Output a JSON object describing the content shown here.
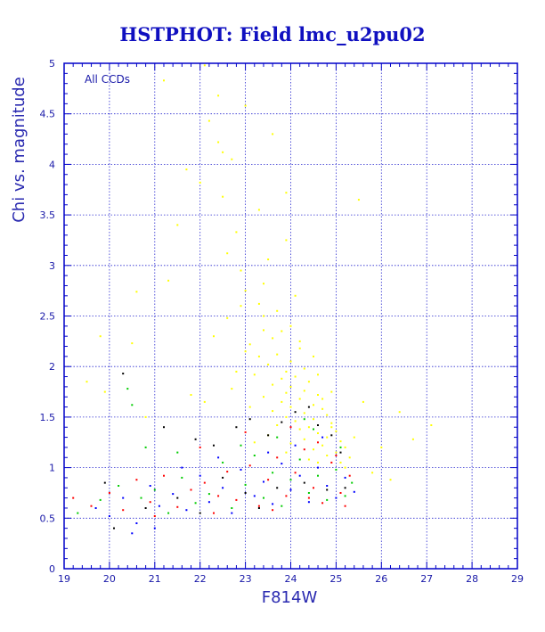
{
  "chart_data": {
    "type": "scatter",
    "title": "HSTPHOT: Field lmc_u2pu02",
    "xlabel": "F814W",
    "ylabel": "Chi vs. magnitude",
    "annotation": "All CCDs",
    "xlim": [
      19,
      29
    ],
    "ylim": [
      0,
      5
    ],
    "xticks": [
      "19",
      "20",
      "21",
      "22",
      "23",
      "24",
      "25",
      "26",
      "27",
      "28",
      "29"
    ],
    "yticks": [
      "0",
      "0.5",
      "1",
      "1.5",
      "2",
      "2.5",
      "3",
      "3.5",
      "4",
      "4.5",
      "5"
    ],
    "grid": true,
    "colors": {
      "frame": "#0000c8",
      "grid": "#2b2bd0",
      "text": "#1818a8"
    },
    "series": [
      {
        "color": "#ffff00",
        "points": [
          [
            22.1,
            4.98
          ],
          [
            21.2,
            4.83
          ],
          [
            22.4,
            4.68
          ],
          [
            23.0,
            4.58
          ],
          [
            22.2,
            4.43
          ],
          [
            23.6,
            4.3
          ],
          [
            22.4,
            4.22
          ],
          [
            22.5,
            4.12
          ],
          [
            22.7,
            4.05
          ],
          [
            21.7,
            3.95
          ],
          [
            22.0,
            3.82
          ],
          [
            23.9,
            3.72
          ],
          [
            22.5,
            3.68
          ],
          [
            25.5,
            3.65
          ],
          [
            23.3,
            3.55
          ],
          [
            21.5,
            3.4
          ],
          [
            22.8,
            3.33
          ],
          [
            23.9,
            3.25
          ],
          [
            22.6,
            3.12
          ],
          [
            23.5,
            3.06
          ],
          [
            22.9,
            2.95
          ],
          [
            23.4,
            2.82
          ],
          [
            23.0,
            2.75
          ],
          [
            20.6,
            2.74
          ],
          [
            24.1,
            2.7
          ],
          [
            23.3,
            2.62
          ],
          [
            23.7,
            2.55
          ],
          [
            22.6,
            2.48
          ],
          [
            24.0,
            2.4
          ],
          [
            23.4,
            2.36
          ],
          [
            22.3,
            2.3
          ],
          [
            23.6,
            2.28
          ],
          [
            23.1,
            2.22
          ],
          [
            24.2,
            2.18
          ],
          [
            23.7,
            2.12
          ],
          [
            20.5,
            2.23
          ],
          [
            19.8,
            2.3
          ],
          [
            23.3,
            2.1
          ],
          [
            24.0,
            2.05
          ],
          [
            23.5,
            2.02
          ],
          [
            24.3,
            1.98
          ],
          [
            23.9,
            1.95
          ],
          [
            23.2,
            1.92
          ],
          [
            24.1,
            1.9
          ],
          [
            23.8,
            1.88
          ],
          [
            24.4,
            1.85
          ],
          [
            23.6,
            1.82
          ],
          [
            24.0,
            1.8
          ],
          [
            22.7,
            1.78
          ],
          [
            24.3,
            1.76
          ],
          [
            23.9,
            1.74
          ],
          [
            24.6,
            1.72
          ],
          [
            23.4,
            1.7
          ],
          [
            24.2,
            1.68
          ],
          [
            23.8,
            1.65
          ],
          [
            24.5,
            1.62
          ],
          [
            24.0,
            1.6
          ],
          [
            24.7,
            1.58
          ],
          [
            23.6,
            1.56
          ],
          [
            24.3,
            1.54
          ],
          [
            24.8,
            1.52
          ],
          [
            23.9,
            1.5
          ],
          [
            24.5,
            1.48
          ],
          [
            24.1,
            1.46
          ],
          [
            24.9,
            1.44
          ],
          [
            23.7,
            1.42
          ],
          [
            24.4,
            1.4
          ],
          [
            24.2,
            1.38
          ],
          [
            25.0,
            1.36
          ],
          [
            24.6,
            1.34
          ],
          [
            23.5,
            1.32
          ],
          [
            24.8,
            1.3
          ],
          [
            24.3,
            1.28
          ],
          [
            25.1,
            1.26
          ],
          [
            24.0,
            1.24
          ],
          [
            24.7,
            1.22
          ],
          [
            25.2,
            1.2
          ],
          [
            24.5,
            1.18
          ],
          [
            25.0,
            1.15
          ],
          [
            24.8,
            1.12
          ],
          [
            25.3,
            1.1
          ],
          [
            24.4,
            1.08
          ],
          [
            25.1,
            1.05
          ],
          [
            26.0,
            1.2
          ],
          [
            26.7,
            1.28
          ],
          [
            27.1,
            1.42
          ],
          [
            26.4,
            1.55
          ],
          [
            26.2,
            0.88
          ],
          [
            25.8,
            0.95
          ],
          [
            24.6,
            1.92
          ],
          [
            24.9,
            1.75
          ],
          [
            25.6,
            1.65
          ],
          [
            21.3,
            2.85
          ],
          [
            19.5,
            1.85
          ],
          [
            19.9,
            1.75
          ],
          [
            21.8,
            1.72
          ],
          [
            22.1,
            1.65
          ],
          [
            20.8,
            1.5
          ],
          [
            22.8,
            1.95
          ],
          [
            23.0,
            2.15
          ],
          [
            24.2,
            2.25
          ],
          [
            24.5,
            2.1
          ],
          [
            23.1,
            1.6
          ],
          [
            24.7,
            1.68
          ],
          [
            23.4,
            2.5
          ],
          [
            22.9,
            2.6
          ],
          [
            23.8,
            2.35
          ],
          [
            24.9,
            1.4
          ],
          [
            25.4,
            1.3
          ],
          [
            25.2,
            1.0
          ],
          [
            24.6,
            1.05
          ],
          [
            23.9,
            1.15
          ],
          [
            23.2,
            1.25
          ]
        ]
      },
      {
        "color": "#ff0000",
        "points": [
          [
            19.2,
            0.7
          ],
          [
            19.6,
            0.62
          ],
          [
            20.0,
            0.75
          ],
          [
            20.3,
            0.58
          ],
          [
            20.6,
            0.88
          ],
          [
            20.9,
            0.66
          ],
          [
            21.2,
            0.92
          ],
          [
            21.5,
            0.61
          ],
          [
            21.8,
            0.78
          ],
          [
            22.1,
            0.85
          ],
          [
            22.3,
            0.55
          ],
          [
            22.6,
            0.96
          ],
          [
            22.8,
            0.68
          ],
          [
            23.1,
            1.02
          ],
          [
            23.3,
            0.62
          ],
          [
            23.5,
            0.88
          ],
          [
            23.7,
            1.1
          ],
          [
            23.9,
            0.72
          ],
          [
            24.1,
            0.95
          ],
          [
            24.3,
            1.18
          ],
          [
            24.5,
            0.8
          ],
          [
            24.7,
            0.65
          ],
          [
            24.9,
            1.05
          ],
          [
            25.1,
            0.75
          ],
          [
            25.3,
            0.92
          ],
          [
            22.0,
            1.2
          ],
          [
            23.0,
            1.35
          ],
          [
            24.0,
            1.4
          ],
          [
            24.6,
            1.25
          ],
          [
            25.0,
            1.12
          ],
          [
            21.0,
            0.52
          ],
          [
            22.4,
            0.72
          ],
          [
            23.6,
            0.58
          ],
          [
            24.4,
            0.7
          ],
          [
            25.2,
            0.62
          ]
        ]
      },
      {
        "color": "#00cc00",
        "points": [
          [
            19.3,
            0.55
          ],
          [
            19.8,
            0.68
          ],
          [
            20.2,
            0.82
          ],
          [
            20.5,
            1.62
          ],
          [
            20.7,
            0.7
          ],
          [
            21.0,
            0.78
          ],
          [
            21.3,
            0.55
          ],
          [
            21.6,
            0.9
          ],
          [
            21.9,
            0.65
          ],
          [
            22.2,
            0.74
          ],
          [
            22.5,
            1.05
          ],
          [
            22.7,
            0.6
          ],
          [
            23.0,
            0.83
          ],
          [
            23.2,
            1.12
          ],
          [
            23.4,
            0.7
          ],
          [
            23.6,
            0.95
          ],
          [
            23.8,
            0.62
          ],
          [
            24.0,
            0.88
          ],
          [
            24.2,
            1.08
          ],
          [
            24.4,
            0.75
          ],
          [
            24.6,
            0.92
          ],
          [
            24.8,
            0.68
          ],
          [
            25.0,
            0.98
          ],
          [
            25.2,
            0.72
          ],
          [
            25.35,
            0.85
          ],
          [
            22.9,
            1.22
          ],
          [
            23.7,
            1.3
          ],
          [
            24.5,
            1.38
          ],
          [
            20.4,
            1.78
          ],
          [
            20.8,
            1.2
          ],
          [
            21.5,
            1.15
          ],
          [
            24.3,
            1.48
          ],
          [
            25.1,
            1.2
          ]
        ]
      },
      {
        "color": "#0000ff",
        "points": [
          [
            19.7,
            0.6
          ],
          [
            20.0,
            0.52
          ],
          [
            20.3,
            0.7
          ],
          [
            20.6,
            0.45
          ],
          [
            20.9,
            0.82
          ],
          [
            21.1,
            0.62
          ],
          [
            21.4,
            0.74
          ],
          [
            21.7,
            0.58
          ],
          [
            22.0,
            0.92
          ],
          [
            22.2,
            0.66
          ],
          [
            22.5,
            0.8
          ],
          [
            22.7,
            0.55
          ],
          [
            22.9,
            0.98
          ],
          [
            23.2,
            0.72
          ],
          [
            23.4,
            0.86
          ],
          [
            23.6,
            0.64
          ],
          [
            23.8,
            1.04
          ],
          [
            24.0,
            0.78
          ],
          [
            24.2,
            0.92
          ],
          [
            24.4,
            0.66
          ],
          [
            24.6,
            1.0
          ],
          [
            24.8,
            0.82
          ],
          [
            25.0,
            0.7
          ],
          [
            25.2,
            0.9
          ],
          [
            25.4,
            0.76
          ],
          [
            24.1,
            1.22
          ],
          [
            23.5,
            1.15
          ],
          [
            24.7,
            1.3
          ],
          [
            22.4,
            1.1
          ],
          [
            21.6,
            1.0
          ],
          [
            20.5,
            0.35
          ],
          [
            21.0,
            0.4
          ]
        ]
      },
      {
        "color": "#000000",
        "points": [
          [
            20.3,
            1.93
          ],
          [
            20.1,
            0.4
          ],
          [
            21.2,
            1.4
          ],
          [
            21.9,
            1.28
          ],
          [
            22.3,
            1.22
          ],
          [
            22.8,
            1.4
          ],
          [
            23.1,
            1.48
          ],
          [
            23.5,
            1.32
          ],
          [
            23.8,
            1.45
          ],
          [
            24.1,
            1.55
          ],
          [
            24.4,
            1.6
          ],
          [
            24.6,
            1.42
          ],
          [
            24.9,
            1.32
          ],
          [
            25.1,
            1.15
          ],
          [
            22.5,
            0.9
          ],
          [
            23.0,
            0.75
          ],
          [
            23.7,
            0.8
          ],
          [
            24.3,
            0.85
          ],
          [
            24.8,
            0.78
          ],
          [
            25.2,
            0.8
          ],
          [
            21.5,
            0.7
          ],
          [
            20.8,
            0.6
          ],
          [
            19.9,
            0.85
          ],
          [
            22.0,
            0.55
          ],
          [
            23.3,
            0.6
          ]
        ]
      }
    ]
  }
}
